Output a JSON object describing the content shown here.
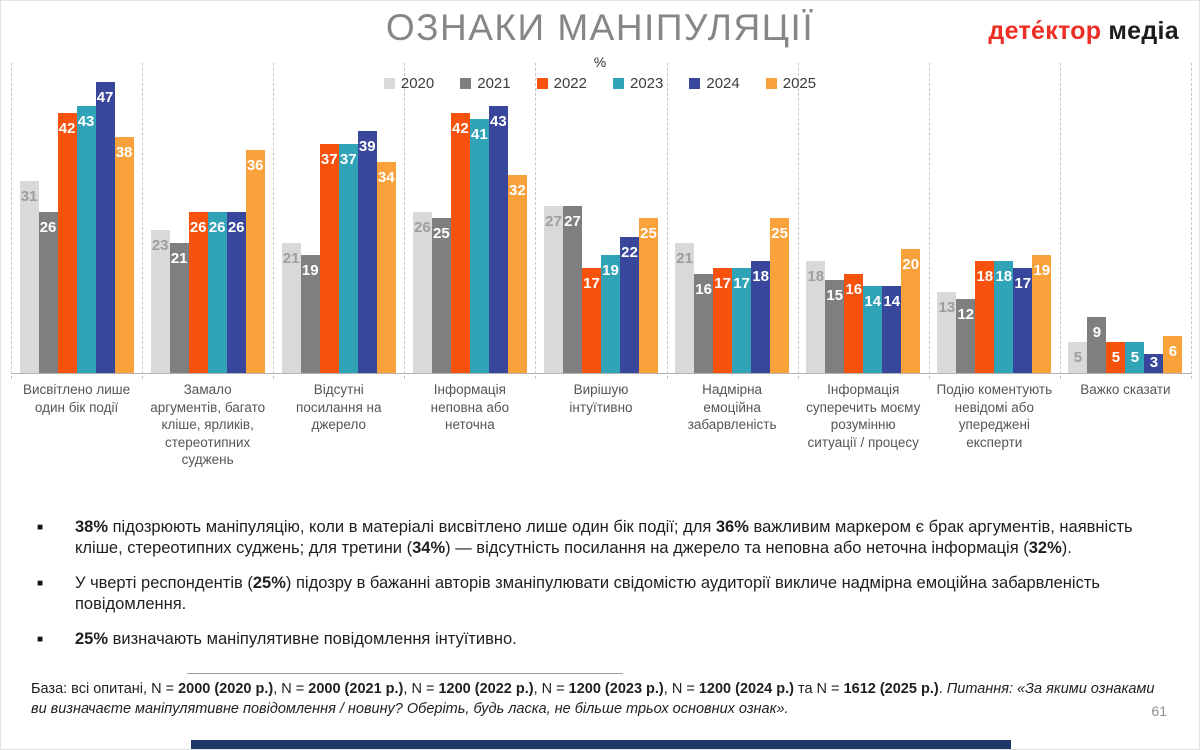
{
  "header": {
    "title": "ОЗНАКИ МАНІПУЛЯЦІЇ",
    "logo": {
      "part1": "дете́ктор",
      "part2": "медіа"
    }
  },
  "page_number": "61",
  "chart_data": {
    "type": "bar",
    "title": "ОЗНАКИ МАНІПУЛЯЦІЇ",
    "unit": "%",
    "ylim": [
      0,
      50
    ],
    "legend_position": "top-center",
    "grid": "vertical dashed separators between category groups",
    "categories": [
      "Висвітлено лише один бік події",
      "Замало аргументів, багато кліше, ярликів, стереотипних суджень",
      "Відсутні посилання на джерело",
      "Інформація неповна або неточна",
      "Вирішую інтуїтивно",
      "Надмірна емоційна забарвленість",
      "Інформація суперечить моєму розумінню ситуації / процесу",
      "Подію коментують невідомі або упереджені експерти",
      "Важко сказати"
    ],
    "series": [
      {
        "name": "2020",
        "color": "#d9d9d9",
        "label_color": "#9e9e9e",
        "values": [
          31,
          23,
          21,
          26,
          27,
          21,
          18,
          13,
          5
        ]
      },
      {
        "name": "2021",
        "color": "#7f7f7f",
        "label_color": "#ffffff",
        "values": [
          26,
          21,
          19,
          25,
          27,
          16,
          15,
          12,
          9
        ]
      },
      {
        "name": "2022",
        "color": "#f6520d",
        "label_color": "#ffffff",
        "values": [
          42,
          26,
          37,
          42,
          17,
          17,
          16,
          18,
          5
        ]
      },
      {
        "name": "2023",
        "color": "#31a3b7",
        "label_color": "#ffffff",
        "values": [
          43,
          26,
          37,
          41,
          19,
          17,
          14,
          18,
          5
        ]
      },
      {
        "name": "2024",
        "color": "#38469b",
        "label_color": "#ffffff",
        "values": [
          47,
          26,
          39,
          43,
          22,
          18,
          14,
          17,
          3
        ]
      },
      {
        "name": "2025",
        "color": "#f9a13b",
        "label_color": "#ffffff",
        "values": [
          38,
          36,
          34,
          32,
          25,
          25,
          20,
          19,
          6
        ]
      }
    ]
  },
  "bullets": [
    [
      {
        "text": "38%",
        "bold": true
      },
      {
        "text": " підозрюють маніпуляцію, коли в матеріалі висвітлено лише один бік події; для "
      },
      {
        "text": "36%",
        "bold": true
      },
      {
        "text": " важливим маркером є брак аргументів, наявність кліше, стереотипних суджень; для третини ("
      },
      {
        "text": "34%",
        "bold": true
      },
      {
        "text": ") — відсутність посилання на джерело та неповна або неточна інформація ("
      },
      {
        "text": "32%",
        "bold": true
      },
      {
        "text": ")."
      }
    ],
    [
      {
        "text": "У чверті респондентів ("
      },
      {
        "text": "25%",
        "bold": true
      },
      {
        "text": ") підозру в бажанні авторів зманіпулювати свідомістю аудиторії викличе надмірна емоційна забарвленість повідомлення."
      }
    ],
    [
      {
        "text": "25%",
        "bold": true
      },
      {
        "text": " визначають маніпулятивне повідомлення інтуїтивно."
      }
    ]
  ],
  "footer": {
    "segments": [
      {
        "text": "База: всі опитані, N = "
      },
      {
        "text": "2000 (2020 р.)",
        "bold": true
      },
      {
        "text": ", N = "
      },
      {
        "text": "2000 (2021 р.)",
        "bold": true
      },
      {
        "text": ", N = "
      },
      {
        "text": "1200 (2022 р.)",
        "bold": true
      },
      {
        "text": ", N = "
      },
      {
        "text": "1200 (2023 р.)",
        "bold": true
      },
      {
        "text": ", N = "
      },
      {
        "text": "1200 (2024 р.)",
        "bold": true
      },
      {
        "text": " та N = "
      },
      {
        "text": "1612 (2025 р.)",
        "bold": true
      },
      {
        "text": ". "
      },
      {
        "text": "Питання: «За якими ознаками ви визначаєте маніпулятивне повідомлення / новину? Оберіть, будь ласка, не більше трьох основних ознак».",
        "italic": true
      }
    ]
  }
}
